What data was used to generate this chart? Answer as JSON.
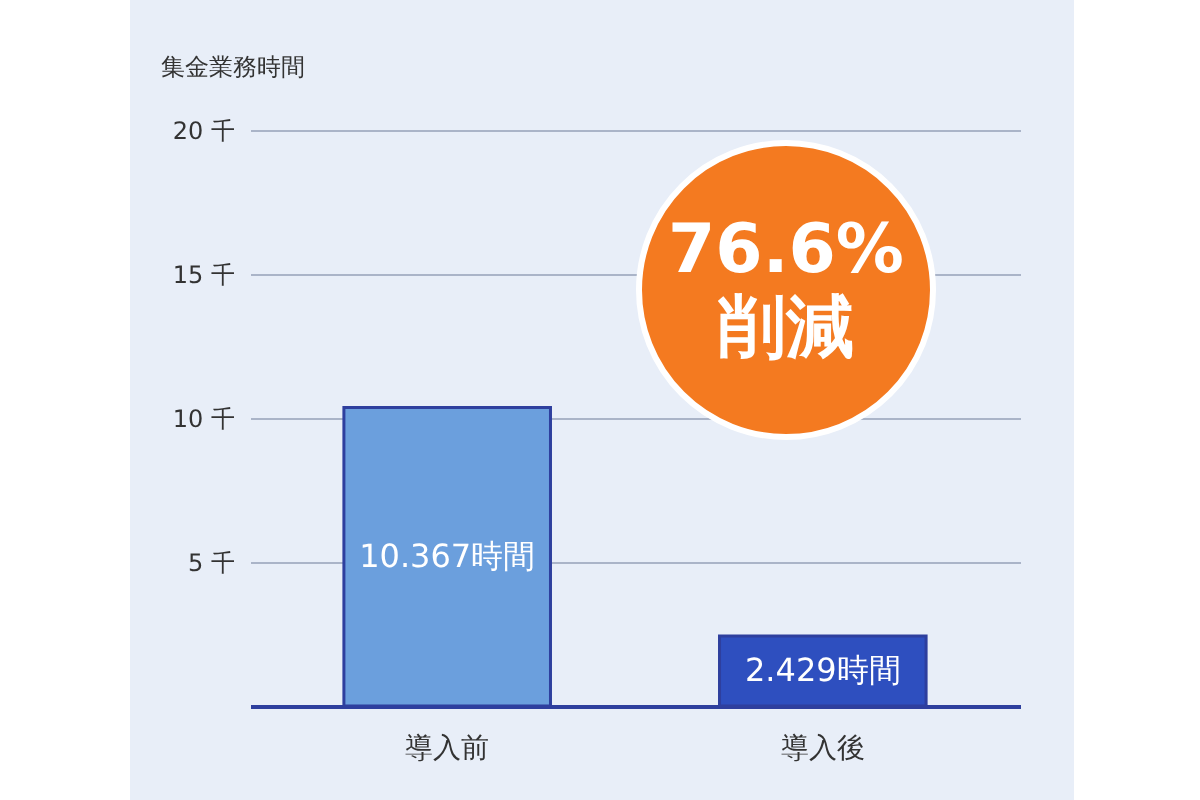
{
  "chart_data": {
    "type": "bar",
    "ylabel": "集金業務時間",
    "categories": [
      "導入前",
      "導入後"
    ],
    "values": [
      10.367,
      2.429
    ],
    "colors": [
      "#6b9fdd",
      "#2e4fbf"
    ],
    "value_labels": [
      "10.367時間",
      "2.429時間"
    ],
    "ylim": [
      0,
      20
    ],
    "yticks": [
      {
        "value": 5,
        "label": "5 千"
      },
      {
        "value": 10,
        "label": "10 千"
      },
      {
        "value": 15,
        "label": "15 千"
      },
      {
        "value": 20,
        "label": "20 千"
      }
    ],
    "grid": "y",
    "annotations": [
      "76.6% 削減"
    ]
  }
}
